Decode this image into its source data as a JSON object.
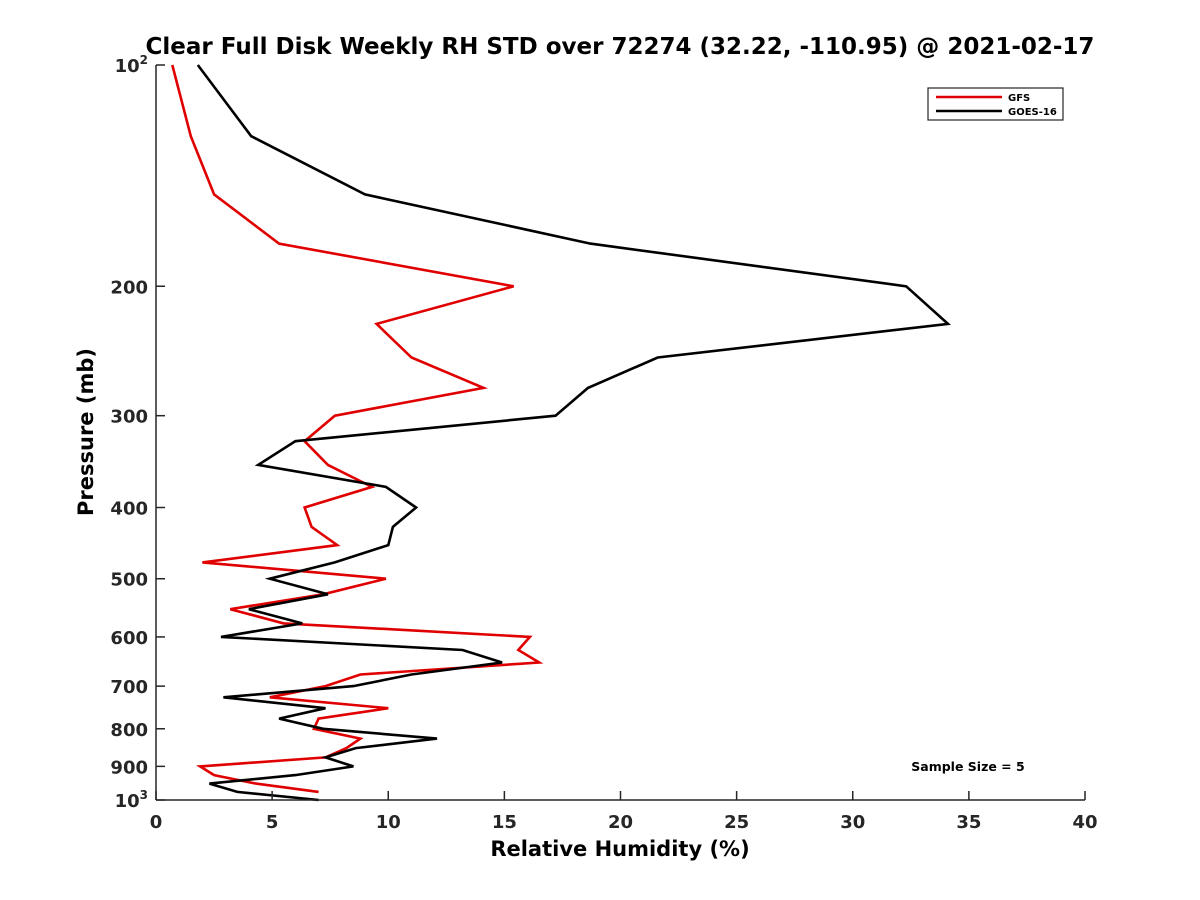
{
  "chart_data": {
    "type": "line",
    "title": "Clear Full Disk Weekly RH STD over 72274 (32.22, -110.95) @ 2021-02-17",
    "xlabel": "Relative Humidity (%)",
    "ylabel": "Pressure (mb)",
    "xlim": [
      0,
      40
    ],
    "ylim": [
      100,
      1000
    ],
    "y_scale": "log",
    "y_reversed": true,
    "grid": false,
    "legend_position": "top-right",
    "x_ticks": [
      0,
      5,
      10,
      15,
      20,
      25,
      30,
      35,
      40
    ],
    "x_tick_labels": [
      "0",
      "5",
      "10",
      "15",
      "20",
      "25",
      "30",
      "35",
      "40"
    ],
    "y_ticks": [
      {
        "value": 100,
        "base": "10",
        "exp": "2"
      },
      {
        "value": 200,
        "label": "200"
      },
      {
        "value": 300,
        "label": "300"
      },
      {
        "value": 400,
        "label": "400"
      },
      {
        "value": 500,
        "label": "500"
      },
      {
        "value": 600,
        "label": "600"
      },
      {
        "value": 700,
        "label": "700"
      },
      {
        "value": 800,
        "label": "800"
      },
      {
        "value": 900,
        "label": "900"
      },
      {
        "value": 1000,
        "base": "10",
        "exp": "3"
      }
    ],
    "annotation": "Sample Size = 5",
    "series": [
      {
        "name": "GFS",
        "color": "#e00000",
        "points": [
          [
            0.7,
            100
          ],
          [
            1.5,
            125
          ],
          [
            2.5,
            150
          ],
          [
            5.3,
            175
          ],
          [
            15.4,
            200
          ],
          [
            9.5,
            225
          ],
          [
            11.0,
            250
          ],
          [
            14.1,
            275
          ],
          [
            7.7,
            300
          ],
          [
            6.4,
            325
          ],
          [
            7.4,
            350
          ],
          [
            9.3,
            375
          ],
          [
            6.4,
            400
          ],
          [
            6.7,
            425
          ],
          [
            7.8,
            450
          ],
          [
            2.0,
            475
          ],
          [
            9.9,
            500
          ],
          [
            7.2,
            525
          ],
          [
            3.2,
            550
          ],
          [
            5.5,
            575
          ],
          [
            16.1,
            600
          ],
          [
            15.6,
            625
          ],
          [
            16.5,
            650
          ],
          [
            8.8,
            675
          ],
          [
            7.3,
            700
          ],
          [
            4.9,
            725
          ],
          [
            10.0,
            750
          ],
          [
            7.0,
            775
          ],
          [
            6.8,
            800
          ],
          [
            8.8,
            825
          ],
          [
            8.2,
            850
          ],
          [
            7.3,
            875
          ],
          [
            1.9,
            900
          ],
          [
            2.5,
            925
          ],
          [
            4.3,
            950
          ],
          [
            7.0,
            975
          ]
        ]
      },
      {
        "name": "GOES-16",
        "color": "#000000",
        "points": [
          [
            1.8,
            100
          ],
          [
            4.1,
            125
          ],
          [
            9.0,
            150
          ],
          [
            18.7,
            175
          ],
          [
            32.3,
            200
          ],
          [
            34.1,
            225
          ],
          [
            21.6,
            250
          ],
          [
            18.6,
            275
          ],
          [
            17.2,
            300
          ],
          [
            6.0,
            325
          ],
          [
            4.4,
            350
          ],
          [
            9.9,
            375
          ],
          [
            11.2,
            400
          ],
          [
            10.2,
            425
          ],
          [
            10.0,
            450
          ],
          [
            7.7,
            475
          ],
          [
            4.9,
            500
          ],
          [
            7.4,
            525
          ],
          [
            4.0,
            550
          ],
          [
            6.3,
            575
          ],
          [
            2.8,
            600
          ],
          [
            13.2,
            625
          ],
          [
            14.9,
            650
          ],
          [
            11.0,
            675
          ],
          [
            8.5,
            700
          ],
          [
            2.9,
            725
          ],
          [
            7.3,
            750
          ],
          [
            5.3,
            775
          ],
          [
            7.2,
            800
          ],
          [
            12.1,
            825
          ],
          [
            8.6,
            850
          ],
          [
            7.3,
            875
          ],
          [
            8.5,
            900
          ],
          [
            6.0,
            925
          ],
          [
            2.3,
            950
          ],
          [
            3.5,
            975
          ],
          [
            7.0,
            1000
          ]
        ]
      }
    ]
  }
}
